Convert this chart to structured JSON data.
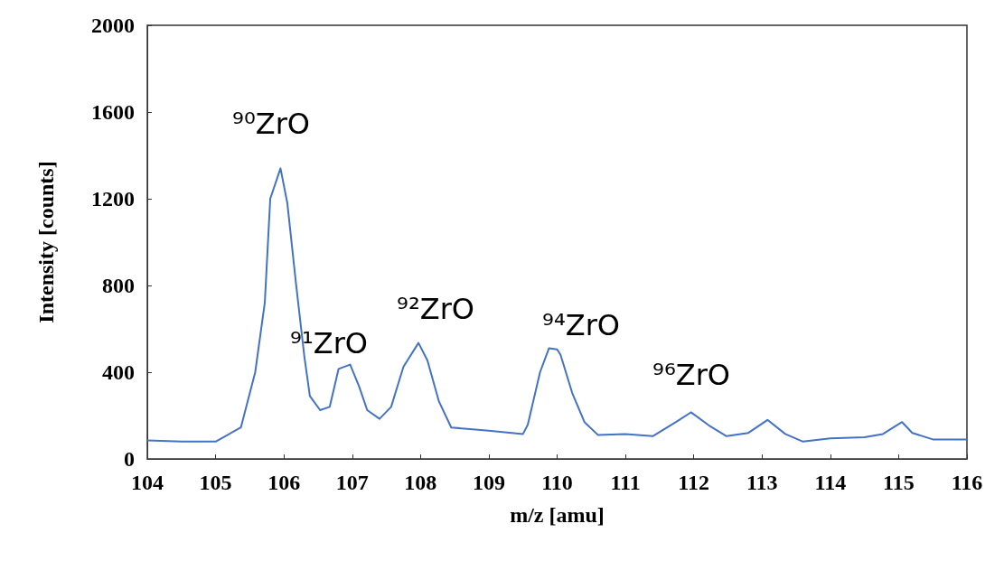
{
  "chart_data": {
    "type": "line",
    "xlabel": "m/z [amu]",
    "ylabel": "Intensity [counts]",
    "xlim": [
      104,
      116
    ],
    "xticks": [
      104,
      105,
      106,
      107,
      108,
      109,
      110,
      111,
      112,
      113,
      114,
      115,
      116
    ],
    "ylim": [
      0,
      2000
    ],
    "yticks": [
      0,
      400,
      800,
      1200,
      1600,
      2000
    ],
    "grid": false,
    "marker": "none",
    "line_style": "solid",
    "series": [
      {
        "color": "#4472c4",
        "x": [
          104,
          104.5,
          105,
          105.37,
          105.58,
          105.72,
          105.8,
          105.95,
          106.05,
          106.18,
          106.3,
          106.38,
          106.53,
          106.67,
          106.8,
          106.97,
          107.1,
          107.22,
          107.4,
          107.57,
          107.75,
          107.97,
          108.1,
          108.27,
          108.45,
          109,
          109.5,
          109.57,
          109.75,
          109.88,
          110,
          110.05,
          110.22,
          110.4,
          110.6,
          111,
          111.4,
          111.74,
          111.96,
          112.22,
          112.48,
          112.8,
          113.08,
          113.34,
          113.6,
          114,
          114.5,
          114.77,
          115.05,
          115.2,
          115.5,
          116
        ],
        "values": [
          85,
          80,
          80,
          145,
          400,
          720,
          1200,
          1340,
          1180,
          800,
          470,
          290,
          225,
          240,
          415,
          435,
          335,
          225,
          185,
          240,
          425,
          535,
          455,
          265,
          145,
          130,
          115,
          157,
          400,
          510,
          505,
          480,
          305,
          170,
          110,
          115,
          105,
          170,
          215,
          155,
          105,
          120,
          180,
          115,
          80,
          95,
          100,
          115,
          170,
          120,
          90,
          90
        ]
      }
    ],
    "annotations": [
      "⁹⁰ZrO",
      "⁹¹ZrO",
      "⁹²ZrO",
      "⁹⁴ZrO",
      "⁹⁶ZrO"
    ]
  }
}
